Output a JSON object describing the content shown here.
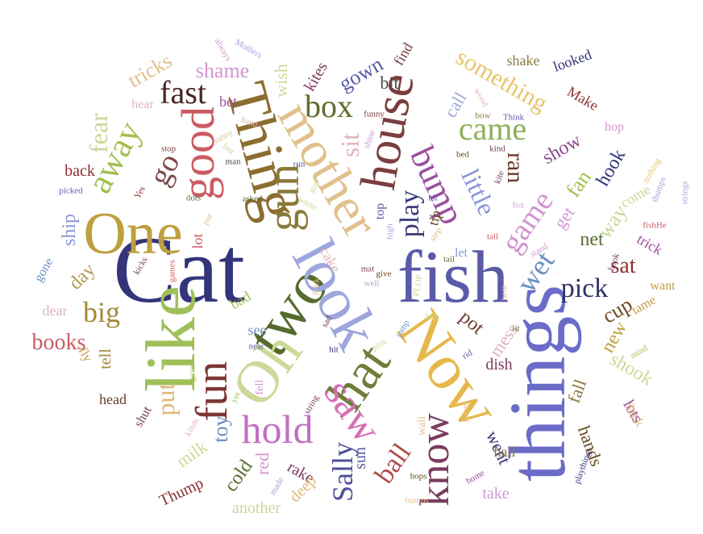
{
  "words": [
    {
      "text": "Cat",
      "color": "#33347a"
    },
    {
      "text": "fish",
      "color": "#5a5aa8"
    },
    {
      "text": "things",
      "color": "#6b6bc8"
    },
    {
      "text": "like",
      "color": "#9fbf58"
    },
    {
      "text": "two",
      "color": "#556b2f"
    },
    {
      "text": "look",
      "color": "#9ea6dd"
    },
    {
      "text": "Oh",
      "color": "#cdd999"
    },
    {
      "text": "hat",
      "color": "#6e7e3a"
    },
    {
      "text": "Now",
      "color": "#e6b84a"
    },
    {
      "text": "Thing",
      "color": "#8b6d2f"
    },
    {
      "text": "mother",
      "color": "#e0c08c"
    },
    {
      "text": "One",
      "color": "#bf9f3f"
    },
    {
      "text": "house",
      "color": "#7a3e3e"
    },
    {
      "text": "good",
      "color": "#cc5a62"
    },
    {
      "text": "gun",
      "color": "#8a7a3a"
    },
    {
      "text": "fun",
      "color": "#7d3535"
    },
    {
      "text": "saw",
      "color": "#d66fb4"
    },
    {
      "text": "know",
      "color": "#7a3d5f"
    },
    {
      "text": "hold",
      "color": "#c26fc2"
    },
    {
      "text": "away",
      "color": "#a3bf4f"
    },
    {
      "text": "bump",
      "color": "#9a4f9e"
    },
    {
      "text": "came",
      "color": "#8fae5a"
    },
    {
      "text": "fast",
      "color": "#4a2525"
    },
    {
      "text": "box",
      "color": "#5e6e2a"
    },
    {
      "text": "game",
      "color": "#d296d2"
    },
    {
      "text": "wet",
      "color": "#6a8fc0"
    },
    {
      "text": "pick",
      "color": "#303066"
    },
    {
      "text": "big",
      "color": "#a4893a"
    },
    {
      "text": "Sally",
      "color": "#4f4f9a"
    },
    {
      "text": "play",
      "color": "#3a3a7a"
    },
    {
      "text": "something",
      "color": "#e6c46b"
    },
    {
      "text": "go",
      "color": "#7f4848"
    },
    {
      "text": "ball",
      "color": "#b24a4a"
    },
    {
      "text": "put",
      "color": "#e0b87a"
    },
    {
      "text": "fear",
      "color": "#c8d89a"
    },
    {
      "text": "sit",
      "color": "#e0b4ba"
    },
    {
      "text": "little",
      "color": "#8a96d8"
    },
    {
      "text": "ran",
      "color": "#6b3a2e"
    },
    {
      "text": "sat",
      "color": "#8b2f2f"
    },
    {
      "text": "cup",
      "color": "#6b4a1f"
    },
    {
      "text": "books",
      "color": "#cc5a62"
    },
    {
      "text": "shame",
      "color": "#d296d2"
    },
    {
      "text": "gown",
      "color": "#5a5aa8"
    },
    {
      "text": "tricks",
      "color": "#e0c08c"
    },
    {
      "text": "day",
      "color": "#b39a4a"
    },
    {
      "text": "ship",
      "color": "#8a96d8"
    },
    {
      "text": "toy",
      "color": "#6a8fc0"
    },
    {
      "text": "fan",
      "color": "#a3bf4f"
    },
    {
      "text": "way",
      "color": "#c8d89a"
    },
    {
      "text": "net",
      "color": "#556b2f"
    },
    {
      "text": "get",
      "color": "#d296d2"
    },
    {
      "text": "show",
      "color": "#8a4a8a"
    },
    {
      "text": "hook",
      "color": "#33347a"
    },
    {
      "text": "call",
      "color": "#9ea6dd"
    },
    {
      "text": "bit",
      "color": "#4a4a4a"
    },
    {
      "text": "kites",
      "color": "#7a3d5f"
    },
    {
      "text": "wish",
      "color": "#cdd999"
    },
    {
      "text": "pot",
      "color": "#6b3a2e"
    },
    {
      "text": "mess",
      "color": "#e0b4ba"
    },
    {
      "text": "dish",
      "color": "#7a3d5f"
    },
    {
      "text": "new",
      "color": "#bf9f3f"
    },
    {
      "text": "shook",
      "color": "#cdd999"
    },
    {
      "text": "fall",
      "color": "#8a7a3a"
    },
    {
      "text": "lots",
      "color": "#9a4f9e"
    },
    {
      "text": "hands",
      "color": "#6b4a1f"
    },
    {
      "text": "went",
      "color": "#33347a"
    },
    {
      "text": "milk",
      "color": "#cdd999"
    },
    {
      "text": "cold",
      "color": "#556b2f"
    },
    {
      "text": "red",
      "color": "#d296d2"
    },
    {
      "text": "rake",
      "color": "#7a3d5f"
    },
    {
      "text": "sun",
      "color": "#5a5aa8"
    },
    {
      "text": "deep",
      "color": "#e0b87a"
    },
    {
      "text": "another",
      "color": "#c8d89a"
    },
    {
      "text": "Thump",
      "color": "#8b2f2f"
    },
    {
      "text": "take",
      "color": "#d296d2"
    },
    {
      "text": "hall",
      "color": "#8a7a3a"
    },
    {
      "text": "head",
      "color": "#6b3a2e"
    },
    {
      "text": "fly",
      "color": "#bf9f3f"
    },
    {
      "text": "tell",
      "color": "#a4893a"
    },
    {
      "text": "dear",
      "color": "#e0b4ba"
    },
    {
      "text": "gone",
      "color": "#6a8fc0"
    },
    {
      "text": "back",
      "color": "#8b2f2f"
    },
    {
      "text": "hear",
      "color": "#e0b4ba"
    },
    {
      "text": "bet",
      "color": "#9a4f9e"
    },
    {
      "text": "shake",
      "color": "#8a7a3a"
    },
    {
      "text": "looked",
      "color": "#33347a"
    },
    {
      "text": "Make",
      "color": "#8b2f2f"
    },
    {
      "text": "hop",
      "color": "#d296d2"
    },
    {
      "text": "come",
      "color": "#c8d89a"
    },
    {
      "text": "trick",
      "color": "#9a4f9e"
    },
    {
      "text": "want",
      "color": "#bf9f3f"
    },
    {
      "text": "tame",
      "color": "#bf9f3f"
    },
    {
      "text": "Sank",
      "color": "#e0b87a"
    },
    {
      "text": "cake",
      "color": "#e0b4ba"
    },
    {
      "text": "top",
      "color": "#5a5aa8"
    },
    {
      "text": "tip",
      "color": "#6b4a1f"
    },
    {
      "text": "let",
      "color": "#8a96d8"
    },
    {
      "text": "see",
      "color": "#6a8fc0"
    },
    {
      "text": "bad",
      "color": "#a3bf4f"
    },
    {
      "text": "lot",
      "color": "#cc5a62"
    },
    {
      "text": "find",
      "color": "#7a3e3e"
    },
    {
      "text": "Mothers",
      "color": "#9ea6dd"
    },
    {
      "text": "always",
      "color": "#d296d2"
    },
    {
      "text": "wood",
      "color": "#e0b4ba"
    },
    {
      "text": "bow",
      "color": "#8a7a3a"
    },
    {
      "text": "Think",
      "color": "#5a5aa8"
    },
    {
      "text": "funny",
      "color": "#7a3e3e"
    },
    {
      "text": "shine",
      "color": "#d296d2"
    },
    {
      "text": "hand",
      "color": "#e0b4ba"
    },
    {
      "text": "sunny",
      "color": "#e0c08c"
    },
    {
      "text": "last",
      "color": "#c8d89a"
    },
    {
      "text": "stop",
      "color": "#7a3e3e"
    },
    {
      "text": "man",
      "color": "#4a4a4a"
    },
    {
      "text": "asked",
      "color": "#556b2f"
    },
    {
      "text": "run",
      "color": "#5a5aa8"
    },
    {
      "text": "got",
      "color": "#cdd999"
    },
    {
      "text": "white",
      "color": "#cdd999"
    },
    {
      "text": "dots",
      "color": "#556b2f"
    },
    {
      "text": "put",
      "color": "#e0c08c"
    },
    {
      "text": "games",
      "color": "#cc5a62"
    },
    {
      "text": "kicks",
      "color": "#7a3d5f"
    },
    {
      "text": "Yes",
      "color": "#8b2f2f"
    },
    {
      "text": "picked",
      "color": "#5a5aa8"
    },
    {
      "text": "kind",
      "color": "#7a3e3e"
    },
    {
      "text": "bed",
      "color": "#6b4a1f"
    },
    {
      "text": "kite",
      "color": "#7a3d5f"
    },
    {
      "text": "fox",
      "color": "#d296d2"
    },
    {
      "text": "tall",
      "color": "#cc5a62"
    },
    {
      "text": "stand",
      "color": "#d296d2"
    },
    {
      "text": "book",
      "color": "#7a3d5f"
    },
    {
      "text": "bent",
      "color": "#e0b4ba"
    },
    {
      "text": "nothing",
      "color": "#e6c46b"
    },
    {
      "text": "thumps",
      "color": "#9ea6dd"
    },
    {
      "text": "strings",
      "color": "#9ea6dd"
    },
    {
      "text": "fishHe",
      "color": "#cc5a62"
    },
    {
      "text": "mind",
      "color": "#a3bf4f"
    },
    {
      "text": "high",
      "color": "#9ea6dd"
    },
    {
      "text": "kit",
      "color": "#5a5aa8"
    },
    {
      "text": "step",
      "color": "#e0c08c"
    },
    {
      "text": "tail",
      "color": "#556b2f"
    },
    {
      "text": "mat",
      "color": "#7a3e3e"
    },
    {
      "text": "give",
      "color": "#6b4a1f"
    },
    {
      "text": "well",
      "color": "#9ea6dd"
    },
    {
      "text": "pack",
      "color": "#e0c08c"
    },
    {
      "text": "PLOP",
      "color": "#cdd999"
    },
    {
      "text": "sad",
      "color": "#7a3e3e"
    },
    {
      "text": "near",
      "color": "#5a5aa8"
    },
    {
      "text": "hit",
      "color": "#33347a"
    },
    {
      "text": "jump",
      "color": "#6a8fc0"
    },
    {
      "text": "bite",
      "color": "#c8d89a"
    },
    {
      "text": "pink",
      "color": "#cdd999"
    },
    {
      "text": "rid",
      "color": "#5a5aa8"
    },
    {
      "text": "lit",
      "color": "#556b2f"
    },
    {
      "text": "fell",
      "color": "#d296d2"
    },
    {
      "text": "gave",
      "color": "#a3bf4f"
    },
    {
      "text": "kinds",
      "color": "#e0b4ba"
    },
    {
      "text": "yet",
      "color": "#a3bf4f"
    },
    {
      "text": "string",
      "color": "#7a3d5f"
    },
    {
      "text": "wall",
      "color": "#e0c08c"
    },
    {
      "text": "made",
      "color": "#9ea6dd"
    },
    {
      "text": "shut",
      "color": "#7a3d5f"
    },
    {
      "text": "hops",
      "color": "#6b4a1f"
    },
    {
      "text": "bumps",
      "color": "#e0c08c"
    },
    {
      "text": "jumps",
      "color": "#e0c08c"
    },
    {
      "text": "home",
      "color": "#9a4f9e"
    },
    {
      "text": "playthings",
      "color": "#33347a"
    }
  ]
}
